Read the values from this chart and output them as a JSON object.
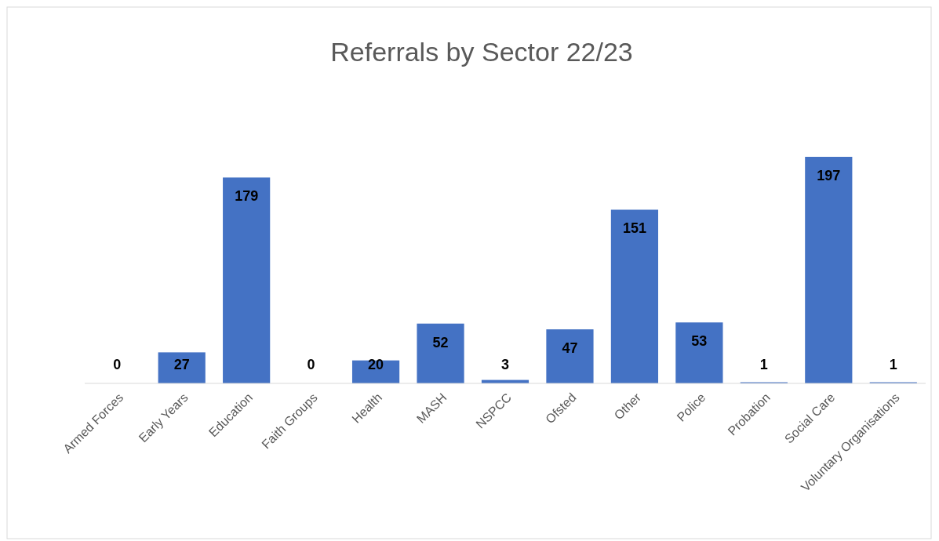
{
  "chart_data": {
    "type": "bar",
    "title": "Referrals by Sector 22/23",
    "categories": [
      "Armed Forces",
      "Early Years",
      "Education",
      "Faith Groups",
      "Health",
      "MASH",
      "NSPCC",
      "Ofsted",
      "Other",
      "Police",
      "Probation",
      "Social Care",
      "Voluntary Organisations"
    ],
    "values": [
      0,
      27,
      179,
      0,
      20,
      52,
      3,
      47,
      151,
      53,
      1,
      197,
      1
    ],
    "color": "#4472c4",
    "data_labels": true
  }
}
